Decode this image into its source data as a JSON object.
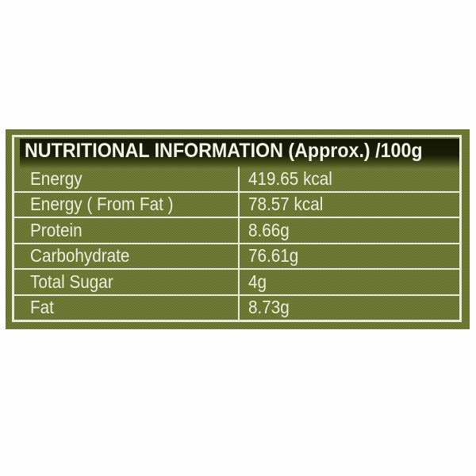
{
  "label": {
    "title": "NUTRITIONAL INFORMATION (Approx.) /100g",
    "rows": [
      {
        "name": "Energy",
        "value": "419.65 kcal"
      },
      {
        "name": "Energy ( From Fat )",
        "value": "78.57 kcal"
      },
      {
        "name": "Protein",
        "value": "8.66g"
      },
      {
        "name": "Carbohydrate",
        "value": "76.61g"
      },
      {
        "name": "Total Sugar",
        "value": "4g"
      },
      {
        "name": "Fat",
        "value": "8.73g"
      }
    ],
    "colors": {
      "panel_green": "#6d7a2d",
      "header_band_dark": "#131803",
      "grid_white": "#e9ebdb",
      "text_offwhite": "#eef0df",
      "page_background": "#fefefe"
    }
  }
}
